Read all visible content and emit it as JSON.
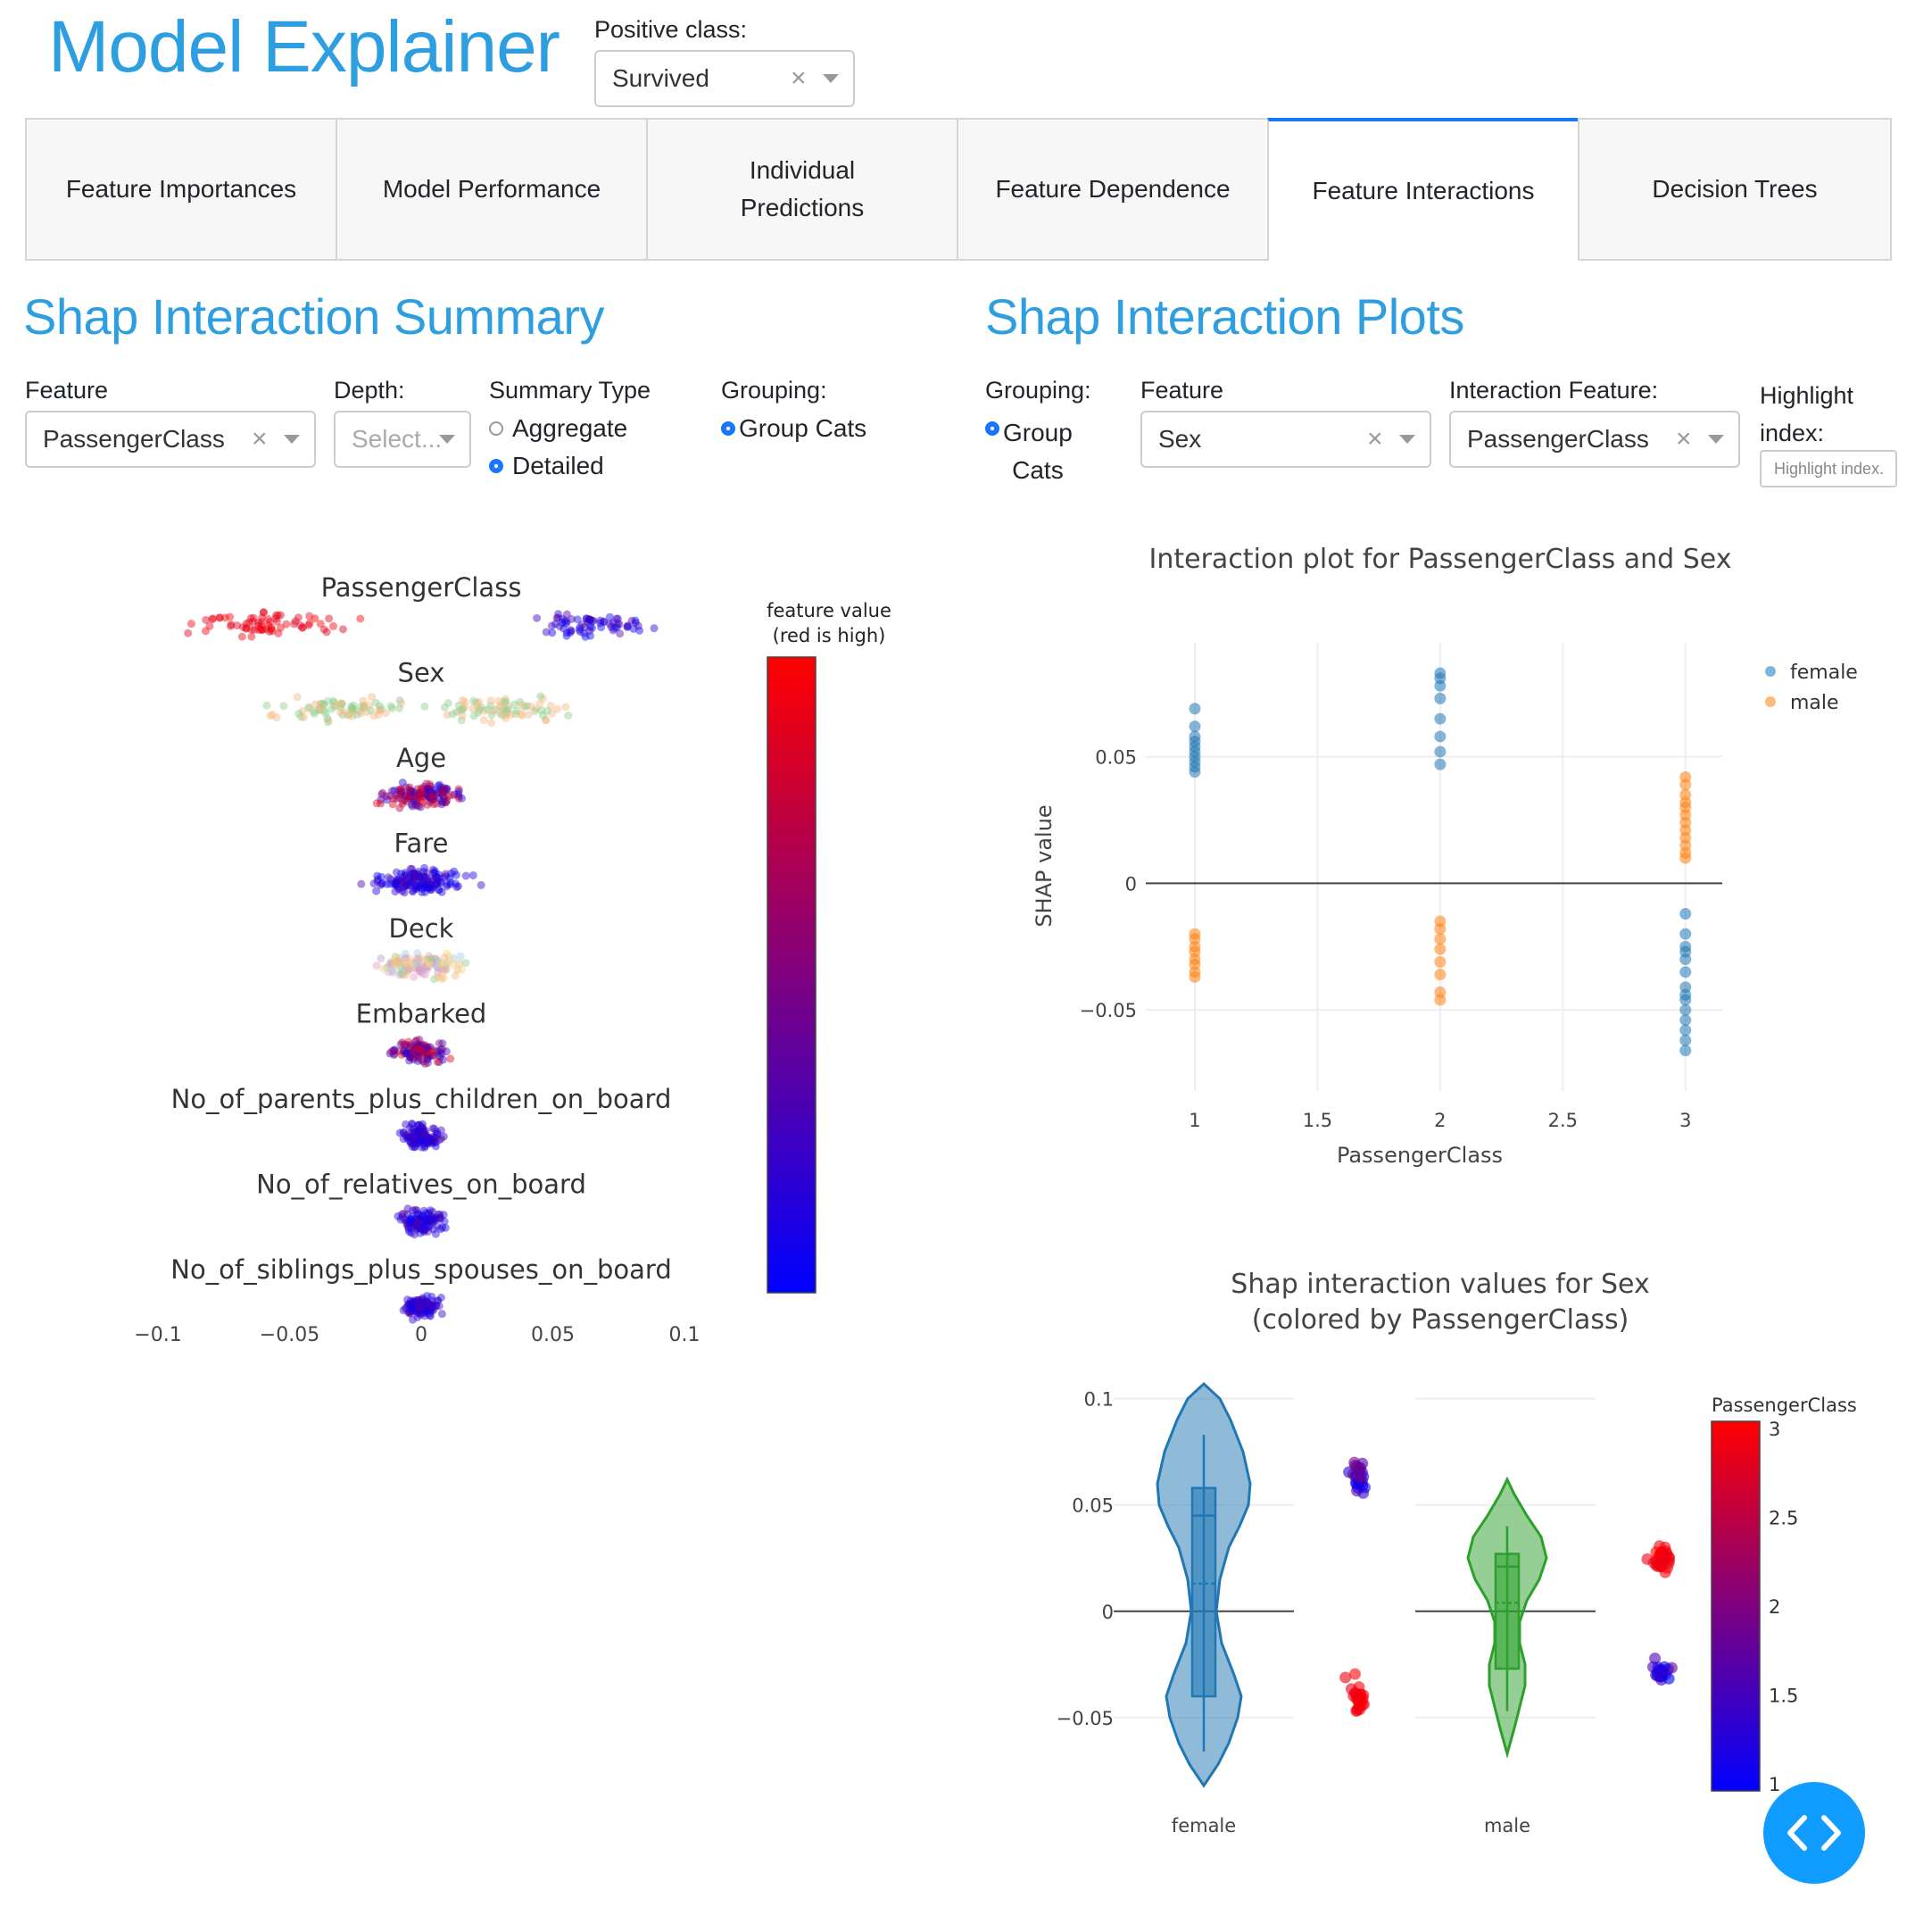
{
  "app": {
    "title": "Model Explainer",
    "positive_class_label": "Positive class:",
    "positive_class_value": "Survived"
  },
  "tabs": [
    {
      "label": "Feature Importances"
    },
    {
      "label": "Model Performance"
    },
    {
      "label": "Individual\nPredictions"
    },
    {
      "label": "Feature Dependence"
    },
    {
      "label": "Feature Interactions"
    },
    {
      "label": "Decision Trees"
    }
  ],
  "summary": {
    "title": "Shap Interaction Summary",
    "feature_label": "Feature",
    "feature_value": "PassengerClass",
    "depth_label": "Depth:",
    "depth_placeholder": "Select...",
    "summary_type_label": "Summary Type",
    "aggregate_label": "Aggregate",
    "detailed_label": "Detailed",
    "grouping_label": "Grouping:",
    "group_cats_label": "Group Cats"
  },
  "plots": {
    "title": "Shap Interaction Plots",
    "grouping_label": "Grouping:",
    "group_cats_label": "Group\nCats",
    "feature_label": "Feature",
    "feature_value": "Sex",
    "interaction_label": "Interaction Feature:",
    "interaction_value": "PassengerClass",
    "highlight_label": "Highlight\nindex:",
    "highlight_placeholder": "Highlight index."
  },
  "colors": {
    "accent": "#2d9ee0",
    "tab_selected": "#1975fa",
    "female": "#1f77b4",
    "male": "#ff7f0e",
    "male_violin": "#2ca02c",
    "cmap_low": "#0000ff",
    "cmap_high": "#ff0000"
  },
  "chart_data": [
    {
      "type": "scatter",
      "name": "summary",
      "rows": [
        "PassengerClass",
        "Sex",
        "Age",
        "Fare",
        "Deck",
        "Embarked",
        "No_of_parents_plus_children_on_board",
        "No_of_relatives_on_board",
        "No_of_siblings_plus_spouses_on_board"
      ],
      "x_ticks": [
        "−0.1",
        "−0.05",
        "0",
        "0.05",
        "0.1"
      ],
      "xlim": [
        -0.1,
        0.1
      ],
      "colorbar_title": "feature value\n(red is high)"
    },
    {
      "type": "scatter",
      "title": "Interaction plot for PassengerClass and Sex",
      "xlabel": "PassengerClass",
      "ylabel": "SHAP value",
      "x_ticks": [
        "1",
        "1.5",
        "2",
        "2.5",
        "3"
      ],
      "y_ticks": [
        "0.05",
        "0",
        "−0.05"
      ],
      "xlim": [
        0.8,
        3.15
      ],
      "ylim": [
        -0.082,
        0.095
      ],
      "series": [
        {
          "name": "female",
          "points": [
            [
              1,
              0.069
            ],
            [
              1,
              0.062
            ],
            [
              1,
              0.058
            ],
            [
              1,
              0.056
            ],
            [
              1,
              0.054
            ],
            [
              1,
              0.052
            ],
            [
              1,
              0.05
            ],
            [
              1,
              0.048
            ],
            [
              1,
              0.046
            ],
            [
              1,
              0.044
            ],
            [
              2,
              0.083
            ],
            [
              2,
              0.081
            ],
            [
              2,
              0.078
            ],
            [
              2,
              0.073
            ],
            [
              2,
              0.065
            ],
            [
              2,
              0.058
            ],
            [
              2,
              0.052
            ],
            [
              2,
              0.047
            ],
            [
              3,
              -0.012
            ],
            [
              3,
              -0.02
            ],
            [
              3,
              -0.025
            ],
            [
              3,
              -0.027
            ],
            [
              3,
              -0.03
            ],
            [
              3,
              -0.035
            ],
            [
              3,
              -0.041
            ],
            [
              3,
              -0.044
            ],
            [
              3,
              -0.046
            ],
            [
              3,
              -0.05
            ],
            [
              3,
              -0.054
            ],
            [
              3,
              -0.058
            ],
            [
              3,
              -0.062
            ],
            [
              3,
              -0.066
            ]
          ]
        },
        {
          "name": "male",
          "points": [
            [
              1,
              -0.02
            ],
            [
              1,
              -0.022
            ],
            [
              1,
              -0.025
            ],
            [
              1,
              -0.027
            ],
            [
              1,
              -0.03
            ],
            [
              1,
              -0.032
            ],
            [
              1,
              -0.035
            ],
            [
              1,
              -0.037
            ],
            [
              2,
              -0.015
            ],
            [
              2,
              -0.018
            ],
            [
              2,
              -0.022
            ],
            [
              2,
              -0.026
            ],
            [
              2,
              -0.031
            ],
            [
              2,
              -0.036
            ],
            [
              2,
              -0.043
            ],
            [
              2,
              -0.046
            ],
            [
              3,
              0.042
            ],
            [
              3,
              0.039
            ],
            [
              3,
              0.035
            ],
            [
              3,
              0.032
            ],
            [
              3,
              0.03
            ],
            [
              3,
              0.027
            ],
            [
              3,
              0.024
            ],
            [
              3,
              0.021
            ],
            [
              3,
              0.018
            ],
            [
              3,
              0.015
            ],
            [
              3,
              0.012
            ],
            [
              3,
              0.01
            ]
          ]
        }
      ]
    },
    {
      "type": "violin",
      "title": "Shap interaction values for Sex\n(colored by PassengerClass)",
      "categories": [
        "female",
        "male"
      ],
      "y_ticks": [
        "0.1",
        "0.05",
        "0",
        "−0.05"
      ],
      "ylim": [
        -0.082,
        0.107
      ],
      "colorbar_title": "PassengerClass",
      "colorbar_ticks": [
        "3",
        "2.5",
        "2",
        "1.5",
        "1"
      ],
      "female_box": {
        "q1": -0.04,
        "median": 0.045,
        "q3": 0.058,
        "mean": 0.013,
        "min": -0.066,
        "max": 0.083
      },
      "male_box": {
        "q1": -0.027,
        "median": 0.021,
        "q3": 0.027,
        "mean": 0.004,
        "min": -0.047,
        "max": 0.04
      }
    }
  ]
}
